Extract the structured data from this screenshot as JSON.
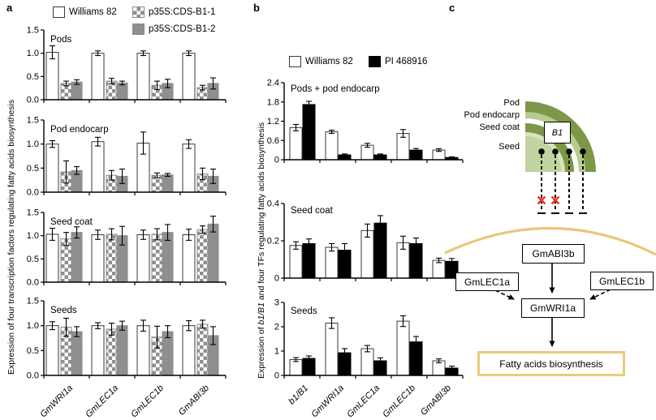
{
  "panel_a": {
    "label": "a",
    "legend": [
      {
        "name": "Williams 82",
        "swatch": "white"
      },
      {
        "name": "p35S:CDS-B1-1",
        "swatch": "checker"
      },
      {
        "name": "p35S:CDS-B1-2",
        "swatch": "gray"
      }
    ],
    "y_axis_label": "Expression of four transcription factors regulating fatty acids biosynthesis"
  },
  "panel_b": {
    "label": "b",
    "legend": [
      {
        "name": "Williams 82",
        "swatch": "white"
      },
      {
        "name": "PI 468916",
        "swatch": "black"
      }
    ],
    "y_axis_label_parts": [
      "Expression of ",
      "b1/B1",
      " and four TFs regulating fatty acids biosynthesis"
    ]
  },
  "panel_c": {
    "label": "c",
    "layer_labels": [
      "Pod",
      "Pod endocarp",
      "Seed coat",
      "Seed"
    ],
    "b1_label": "B1",
    "nodes": {
      "gmabi3b": "GmABI3b",
      "gmlec1a": "GmLEC1a",
      "gmlec1b": "GmLEC1b",
      "gmwri1a": "GmWRI1a",
      "fatty": "Fatty acids biosynthesis"
    }
  },
  "chart_data": [
    {
      "panel": "a",
      "type": "bar",
      "title": "Pods",
      "categories": [
        "GmWRI1a",
        "GmLEC1a",
        "GmLEC1b",
        "GmABI3b"
      ],
      "ylim": [
        0,
        1.5
      ],
      "yticks": [
        0,
        0.5,
        1,
        1.5
      ],
      "ytick_labels": [
        "0.0",
        "0.5",
        "1.0",
        "1.5"
      ],
      "series": [
        {
          "name": "Williams 82",
          "swatch": "white",
          "values": [
            1.02,
            1.0,
            1.0,
            1.0
          ],
          "errors": [
            0.14,
            0.05,
            0.05,
            0.05
          ]
        },
        {
          "name": "p35S:CDS-B1-1",
          "swatch": "checker",
          "values": [
            0.35,
            0.4,
            0.31,
            0.26
          ],
          "errors": [
            0.05,
            0.06,
            0.09,
            0.05
          ]
        },
        {
          "name": "p35S:CDS-B1-2",
          "swatch": "gray",
          "values": [
            0.38,
            0.36,
            0.35,
            0.35
          ],
          "errors": [
            0.05,
            0.04,
            0.09,
            0.12
          ]
        }
      ]
    },
    {
      "panel": "a",
      "type": "bar",
      "title": "Pod endocarp",
      "categories": [
        "GmWRI1a",
        "GmLEC1a",
        "GmLEC1b",
        "GmABI3b"
      ],
      "ylim": [
        0,
        1.5
      ],
      "yticks": [
        0,
        0.5,
        1,
        1.5
      ],
      "ytick_labels": [
        "0.0",
        "0.5",
        "1.0",
        "1.5"
      ],
      "series": [
        {
          "name": "Williams 82",
          "swatch": "white",
          "values": [
            1.0,
            1.05,
            1.02,
            1.0
          ],
          "errors": [
            0.07,
            0.09,
            0.23,
            0.09
          ]
        },
        {
          "name": "p35S:CDS-B1-1",
          "swatch": "checker",
          "values": [
            0.42,
            0.35,
            0.35,
            0.38
          ],
          "errors": [
            0.23,
            0.1,
            0.05,
            0.12
          ]
        },
        {
          "name": "p35S:CDS-B1-2",
          "swatch": "gray",
          "values": [
            0.45,
            0.33,
            0.36,
            0.33
          ],
          "errors": [
            0.08,
            0.15,
            0.03,
            0.15
          ]
        }
      ]
    },
    {
      "panel": "a",
      "type": "bar",
      "title": "Seed coat",
      "categories": [
        "GmWRI1a",
        "GmLEC1a",
        "GmLEC1b",
        "GmABI3b"
      ],
      "ylim": [
        0,
        1.5
      ],
      "yticks": [
        0,
        0.5,
        1,
        1.5
      ],
      "ytick_labels": [
        "0.0",
        "0.5",
        "1.0",
        "1.5"
      ],
      "series": [
        {
          "name": "Williams 82",
          "swatch": "white",
          "values": [
            1.03,
            1.02,
            1.02,
            1.02
          ],
          "errors": [
            0.13,
            0.1,
            0.1,
            0.12
          ]
        },
        {
          "name": "p35S:CDS-B1-1",
          "swatch": "checker",
          "values": [
            0.93,
            1.03,
            1.03,
            1.13
          ],
          "errors": [
            0.14,
            0.12,
            0.12,
            0.08
          ]
        },
        {
          "name": "p35S:CDS-B1-2",
          "swatch": "gray",
          "values": [
            1.07,
            1.0,
            1.07,
            1.25
          ],
          "errors": [
            0.12,
            0.2,
            0.17,
            0.17
          ]
        }
      ]
    },
    {
      "panel": "a",
      "type": "bar",
      "title": "Seeds",
      "categories": [
        "GmWRI1a",
        "GmLEC1a",
        "GmLEC1b",
        "GmABI3b"
      ],
      "ylim": [
        0,
        1.5
      ],
      "yticks": [
        0,
        0.5,
        1,
        1.5
      ],
      "ytick_labels": [
        "0.0",
        "0.5",
        "1.0",
        "1.5"
      ],
      "series": [
        {
          "name": "Williams 82",
          "swatch": "white",
          "values": [
            1.0,
            1.0,
            1.0,
            1.0
          ],
          "errors": [
            0.08,
            0.06,
            0.11,
            0.1
          ]
        },
        {
          "name": "p35S:CDS-B1-1",
          "swatch": "checker",
          "values": [
            0.97,
            0.93,
            0.77,
            1.03
          ],
          "errors": [
            0.18,
            0.12,
            0.22,
            0.08
          ]
        },
        {
          "name": "p35S:CDS-B1-2",
          "swatch": "gray",
          "values": [
            0.88,
            1.0,
            0.88,
            0.8
          ],
          "errors": [
            0.1,
            0.09,
            0.12,
            0.18
          ]
        }
      ]
    },
    {
      "panel": "b",
      "type": "bar",
      "title": "Pods + pod endocarp",
      "categories": [
        "b1/B1",
        "GmWRI1a",
        "GmLEC1a",
        "GmLEC1b",
        "GmABI3b"
      ],
      "ylim": [
        0,
        2.4
      ],
      "yticks": [
        0,
        0.6,
        1.2,
        1.8,
        2.4
      ],
      "ytick_labels": [
        "0",
        "0.6",
        "1.2",
        "1.8",
        "2.4"
      ],
      "series": [
        {
          "name": "Williams 82",
          "swatch": "white",
          "values": [
            1.0,
            0.87,
            0.45,
            0.82,
            0.3
          ],
          "errors": [
            0.1,
            0.05,
            0.06,
            0.12,
            0.04
          ]
        },
        {
          "name": "PI 468916",
          "swatch": "black",
          "values": [
            1.72,
            0.15,
            0.15,
            0.3,
            0.07
          ],
          "errors": [
            0.1,
            0.03,
            0.03,
            0.05,
            0.02
          ]
        }
      ]
    },
    {
      "panel": "b",
      "type": "bar",
      "title": "Seed coat",
      "categories": [
        "b1/B1",
        "GmWRI1a",
        "GmLEC1a",
        "GmLEC1b",
        "GmABI3b"
      ],
      "ylim": [
        0,
        0.4
      ],
      "yticks": [
        0,
        0.2,
        0.4
      ],
      "ytick_labels": [
        "0",
        "0.2",
        "0.4"
      ],
      "series": [
        {
          "name": "Williams 82",
          "swatch": "white",
          "values": [
            0.175,
            0.165,
            0.255,
            0.19,
            0.095
          ],
          "errors": [
            0.02,
            0.02,
            0.035,
            0.035,
            0.012
          ]
        },
        {
          "name": "PI 468916",
          "swatch": "black",
          "values": [
            0.185,
            0.15,
            0.295,
            0.185,
            0.09
          ],
          "errors": [
            0.025,
            0.035,
            0.04,
            0.03,
            0.015
          ]
        }
      ]
    },
    {
      "panel": "b",
      "type": "bar",
      "title": "Seeds",
      "categories": [
        "b1/B1",
        "GmWRI1a",
        "GmLEC1a",
        "GmLEC1b",
        "GmABI3b"
      ],
      "ylim": [
        0,
        3
      ],
      "yticks": [
        0,
        1,
        2,
        3
      ],
      "ytick_labels": [
        "0",
        "1",
        "2",
        "3"
      ],
      "series": [
        {
          "name": "Williams 82",
          "swatch": "white",
          "values": [
            0.65,
            2.15,
            1.1,
            2.23,
            0.6
          ],
          "errors": [
            0.08,
            0.22,
            0.13,
            0.22,
            0.08
          ]
        },
        {
          "name": "PI 468916",
          "swatch": "black",
          "values": [
            0.7,
            0.93,
            0.6,
            1.38,
            0.3
          ],
          "errors": [
            0.1,
            0.17,
            0.12,
            0.22,
            0.08
          ]
        }
      ]
    }
  ],
  "colors": {
    "bar_white": "#ffffff",
    "bar_gray": "#8f8f8f",
    "bar_black": "#000000",
    "checker_gray": "#8f8f8f",
    "pod_green": "#7d9749",
    "endocarp_green": "#b6cb8e",
    "seed_highlight": "#d9e4bd",
    "seed_green": "#c1d3a0",
    "membrane_tan": "#eac87a",
    "fatty_border": "#ecca7c",
    "red_x": "#e8332a"
  }
}
